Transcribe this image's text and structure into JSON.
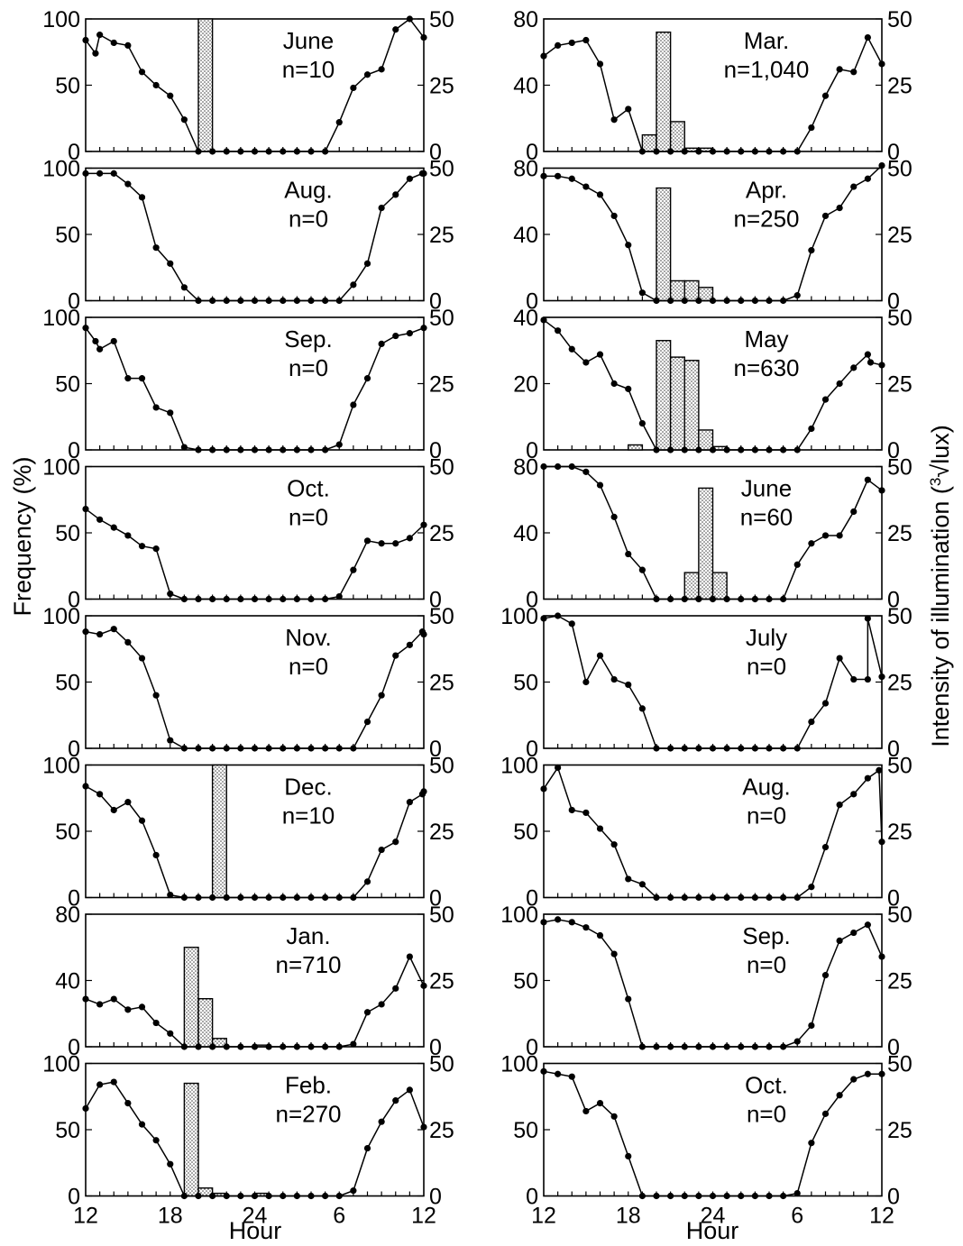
{
  "figure": {
    "ylabel_left": "Frequency (%)",
    "ylabel_right": "Intensity of illumination (",
    "ylabel_right_root": "3",
    "ylabel_right_unit": "lux)",
    "xlabel": "Hour",
    "x_tick_labels": [
      "12",
      "18",
      "24",
      "6",
      "12"
    ]
  },
  "chart_data": [
    {
      "type": "bar+line",
      "month": "June",
      "n": "n=10",
      "freq_ticks": [
        "0",
        "50",
        "100"
      ],
      "freq_max": 100,
      "illum_ticks": [
        "0",
        "25",
        "50"
      ],
      "illum_max": 50,
      "bars": [
        {
          "hour": 20.5,
          "value": 100
        }
      ],
      "illumination": [
        42,
        37,
        44,
        41,
        40,
        30,
        25,
        21,
        12,
        0,
        0,
        0,
        0,
        0,
        0,
        0,
        0,
        0,
        0,
        11,
        24,
        29,
        31,
        46,
        50,
        43
      ],
      "illum_x": [
        12,
        12.7,
        13,
        14,
        15,
        16,
        17,
        18,
        19,
        20,
        21,
        22,
        23,
        24,
        25,
        26,
        27,
        28,
        29,
        30,
        31,
        32,
        33,
        34,
        35,
        36
      ]
    },
    {
      "type": "bar+line",
      "month": "Mar.",
      "n": "n=1,040",
      "freq_ticks": [
        "0",
        "40",
        "80"
      ],
      "freq_max": 80,
      "illum_ticks": [
        "0",
        "25",
        "50"
      ],
      "illum_max": 50,
      "bars": [
        {
          "hour": 19.5,
          "value": 10
        },
        {
          "hour": 20.5,
          "value": 72
        },
        {
          "hour": 21.5,
          "value": 18
        },
        {
          "hour": 22.5,
          "value": 2
        },
        {
          "hour": 23.5,
          "value": 2
        }
      ],
      "illumination": [
        36,
        40,
        41,
        42,
        33,
        12,
        16,
        0,
        0,
        0,
        0,
        0,
        0,
        0,
        0,
        0,
        0,
        0,
        0,
        9,
        21,
        31,
        30,
        43,
        33
      ],
      "illum_x": [
        12,
        13,
        14,
        15,
        16,
        17,
        18,
        19,
        20,
        21,
        22,
        23,
        24,
        25,
        26,
        27,
        28,
        29,
        30,
        31,
        32,
        33,
        34,
        35,
        36
      ]
    },
    {
      "type": "bar+line",
      "month": "Aug.",
      "n": "n=0",
      "freq_ticks": [
        "0",
        "50",
        "100"
      ],
      "freq_max": 100,
      "illum_ticks": [
        "0",
        "25",
        "50"
      ],
      "illum_max": 50,
      "bars": [],
      "illumination": [
        48,
        48,
        48,
        44,
        39,
        20,
        14,
        5,
        0,
        0,
        0,
        0,
        0,
        0,
        0,
        0,
        0,
        0,
        0,
        6,
        14,
        35,
        40,
        46,
        48,
        48
      ],
      "illum_x": [
        12,
        13,
        14,
        15,
        16,
        17,
        18,
        19,
        20,
        21,
        22,
        23,
        24,
        25,
        26,
        27,
        28,
        29,
        30,
        31,
        32,
        33,
        34,
        35,
        35.9,
        36
      ]
    },
    {
      "type": "bar+line",
      "month": "Apr.",
      "n": "n=250",
      "freq_ticks": [
        "0",
        "40",
        "80"
      ],
      "freq_max": 80,
      "illum_ticks": [
        "0",
        "25",
        "50"
      ],
      "illum_max": 50,
      "bars": [
        {
          "hour": 20.5,
          "value": 68
        },
        {
          "hour": 21.5,
          "value": 12
        },
        {
          "hour": 22.5,
          "value": 12
        },
        {
          "hour": 23.5,
          "value": 8
        }
      ],
      "illumination": [
        47,
        47,
        46,
        43,
        40,
        32,
        21,
        3,
        0,
        0,
        0,
        0,
        0,
        0,
        0,
        0,
        0,
        0,
        2,
        19,
        32,
        35,
        43,
        46,
        51
      ],
      "illum_x": [
        12,
        13,
        14,
        15,
        16,
        17,
        18,
        19,
        20,
        21,
        22,
        23,
        24,
        25,
        26,
        27,
        28,
        29,
        30,
        31,
        32,
        33,
        34,
        35,
        36
      ]
    },
    {
      "type": "bar+line",
      "month": "Sep.",
      "n": "n=0",
      "freq_ticks": [
        "0",
        "50",
        "100"
      ],
      "freq_max": 100,
      "illum_ticks": [
        "0",
        "25",
        "50"
      ],
      "illum_max": 50,
      "bars": [],
      "illumination": [
        46,
        41,
        38,
        41,
        27,
        27,
        16,
        14,
        1,
        0,
        0,
        0,
        0,
        0,
        0,
        0,
        0,
        0,
        0,
        2,
        17,
        27,
        40,
        43,
        44,
        46
      ],
      "illum_x": [
        12,
        12.7,
        13,
        14,
        15,
        16,
        17,
        18,
        19,
        20,
        21,
        22,
        23,
        24,
        25,
        26,
        27,
        28,
        29,
        30,
        31,
        32,
        33,
        34,
        35,
        36
      ]
    },
    {
      "type": "bar+line",
      "month": "May",
      "n": "n=630",
      "freq_ticks": [
        "0",
        "20",
        "40"
      ],
      "freq_max": 40,
      "illum_ticks": [
        "0",
        "25",
        "50"
      ],
      "illum_max": 50,
      "bars": [
        {
          "hour": 18.5,
          "value": 1.5
        },
        {
          "hour": 20.5,
          "value": 33
        },
        {
          "hour": 21.5,
          "value": 28
        },
        {
          "hour": 22.5,
          "value": 27
        },
        {
          "hour": 23.5,
          "value": 6
        },
        {
          "hour": 24.5,
          "value": 1
        }
      ],
      "illumination": [
        49,
        45,
        38,
        33,
        36,
        25,
        23,
        10,
        0,
        0,
        0,
        0,
        0,
        0,
        0,
        0,
        0,
        0,
        0,
        8,
        19,
        25,
        31,
        36,
        33,
        32
      ],
      "illum_x": [
        12,
        13,
        14,
        15,
        16,
        17,
        18,
        19,
        20,
        21,
        22,
        23,
        24,
        25,
        26,
        27,
        28,
        29,
        30,
        31,
        32,
        33,
        34,
        35,
        35.2,
        36
      ]
    },
    {
      "type": "bar+line",
      "month": "Oct.",
      "n": "n=0",
      "freq_ticks": [
        "0",
        "50",
        "100"
      ],
      "freq_max": 100,
      "illum_ticks": [
        "0",
        "25",
        "50"
      ],
      "illum_max": 50,
      "bars": [],
      "illumination": [
        34,
        30,
        27,
        24,
        20,
        19,
        2,
        0,
        0,
        0,
        0,
        0,
        0,
        0,
        0,
        0,
        0,
        0,
        1,
        11,
        22,
        21,
        21,
        23,
        28
      ],
      "illum_x": [
        12,
        13,
        14,
        15,
        16,
        17,
        18,
        19,
        20,
        21,
        22,
        23,
        24,
        25,
        26,
        27,
        28,
        29,
        30,
        31,
        32,
        33,
        34,
        35,
        36
      ]
    },
    {
      "type": "bar+line",
      "month": "June",
      "n": "n=60",
      "freq_ticks": [
        "0",
        "40",
        "80"
      ],
      "freq_max": 80,
      "illum_ticks": [
        "0",
        "25",
        "50"
      ],
      "illum_max": 50,
      "bars": [
        {
          "hour": 22.5,
          "value": 16
        },
        {
          "hour": 23.5,
          "value": 67
        },
        {
          "hour": 24.5,
          "value": 16
        }
      ],
      "illumination": [
        50,
        50,
        50,
        48,
        43,
        31,
        17,
        11,
        0,
        0,
        0,
        0,
        0,
        0,
        0,
        0,
        0,
        0,
        13,
        21,
        24,
        24,
        33,
        45,
        41
      ],
      "illum_x": [
        12,
        13,
        14,
        15,
        16,
        17,
        18,
        19,
        20,
        21,
        22,
        23,
        24,
        25,
        26,
        27,
        28,
        29,
        30,
        31,
        32,
        33,
        34,
        35,
        36
      ]
    },
    {
      "type": "bar+line",
      "month": "Nov.",
      "n": "n=0",
      "freq_ticks": [
        "0",
        "50",
        "100"
      ],
      "freq_max": 100,
      "illum_ticks": [
        "0",
        "25",
        "50"
      ],
      "illum_max": 50,
      "bars": [],
      "illumination": [
        44,
        43,
        45,
        40,
        34,
        20,
        3,
        0,
        0,
        0,
        0,
        0,
        0,
        0,
        0,
        0,
        0,
        0,
        0,
        0,
        10,
        20,
        35,
        39,
        44,
        43
      ],
      "illum_x": [
        12,
        13,
        14,
        15,
        16,
        17,
        18,
        19,
        20,
        21,
        22,
        23,
        24,
        25,
        26,
        27,
        28,
        29,
        30,
        31,
        32,
        33,
        34,
        35,
        35.9,
        36
      ]
    },
    {
      "type": "bar+line",
      "month": "July",
      "n": "n=0",
      "freq_ticks": [
        "0",
        "50",
        "100"
      ],
      "freq_max": 100,
      "illum_ticks": [
        "0",
        "25",
        "50"
      ],
      "illum_max": 50,
      "bars": [],
      "illumination": [
        49,
        50,
        47,
        25,
        35,
        26,
        24,
        15,
        0,
        0,
        0,
        0,
        0,
        0,
        0,
        0,
        0,
        0,
        0,
        10,
        17,
        34,
        26,
        26,
        49,
        27
      ],
      "illum_x": [
        12,
        13,
        14,
        15,
        16,
        17,
        18,
        19,
        20,
        21,
        22,
        23,
        24,
        25,
        26,
        27,
        28,
        29,
        30,
        31,
        32,
        33,
        34,
        35,
        35,
        36
      ]
    },
    {
      "type": "bar+line",
      "month": "Dec.",
      "n": "n=10",
      "freq_ticks": [
        "0",
        "50",
        "100"
      ],
      "freq_max": 100,
      "illum_ticks": [
        "0",
        "25",
        "50"
      ],
      "illum_max": 50,
      "bars": [
        {
          "hour": 21.5,
          "value": 100
        }
      ],
      "illumination": [
        42,
        39,
        33,
        36,
        29,
        16,
        1,
        0,
        0,
        0,
        0,
        0,
        0,
        0,
        0,
        0,
        0,
        0,
        0,
        0,
        6,
        18,
        21,
        36,
        39,
        40
      ],
      "illum_x": [
        12,
        13,
        14,
        15,
        16,
        17,
        18,
        19,
        20,
        21,
        22,
        23,
        24,
        25,
        26,
        27,
        28,
        29,
        30,
        31,
        32,
        33,
        34,
        35,
        35.9,
        36
      ]
    },
    {
      "type": "bar+line",
      "month": "Aug.",
      "n": "n=0",
      "freq_ticks": [
        "0",
        "50",
        "100"
      ],
      "freq_max": 100,
      "illum_ticks": [
        "0",
        "25",
        "50"
      ],
      "illum_max": 50,
      "bars": [],
      "illumination": [
        41,
        49,
        33,
        32,
        26,
        20,
        7,
        5,
        0,
        0,
        0,
        0,
        0,
        0,
        0,
        0,
        0,
        0,
        0,
        4,
        19,
        35,
        39,
        45,
        48,
        21
      ],
      "illum_x": [
        12,
        13,
        14,
        15,
        16,
        17,
        18,
        19,
        20,
        21,
        22,
        23,
        24,
        25,
        26,
        27,
        28,
        29,
        30,
        31,
        32,
        33,
        34,
        35,
        35.8,
        36
      ]
    },
    {
      "type": "bar+line",
      "month": "Jan.",
      "n": "n=710",
      "freq_ticks": [
        "0",
        "40",
        "80"
      ],
      "freq_max": 80,
      "illum_ticks": [
        "0",
        "25",
        "50"
      ],
      "illum_max": 50,
      "bars": [
        {
          "hour": 19.5,
          "value": 60
        },
        {
          "hour": 20.5,
          "value": 29
        },
        {
          "hour": 21.5,
          "value": 5
        },
        {
          "hour": 24.5,
          "value": 1
        }
      ],
      "illumination": [
        18,
        16,
        18,
        14,
        15,
        9,
        5,
        0,
        0,
        0,
        0,
        0,
        0,
        0,
        0,
        0,
        0,
        0,
        0,
        1,
        13,
        16,
        22,
        34,
        23
      ],
      "illum_x": [
        12,
        13,
        14,
        15,
        16,
        17,
        18,
        19,
        20,
        21,
        22,
        23,
        24,
        25,
        26,
        27,
        28,
        29,
        30,
        31,
        32,
        33,
        34,
        35,
        36
      ]
    },
    {
      "type": "bar+line",
      "month": "Sep.",
      "n": "n=0",
      "freq_ticks": [
        "0",
        "50",
        "100"
      ],
      "freq_max": 100,
      "illum_ticks": [
        "0",
        "25",
        "50"
      ],
      "illum_max": 50,
      "bars": [],
      "illumination": [
        47,
        48,
        47,
        45,
        42,
        35,
        18,
        0,
        0,
        0,
        0,
        0,
        0,
        0,
        0,
        0,
        0,
        0,
        2,
        8,
        27,
        40,
        43,
        46,
        34
      ],
      "illum_x": [
        12,
        13,
        14,
        15,
        16,
        17,
        18,
        19,
        20,
        21,
        22,
        23,
        24,
        25,
        26,
        27,
        28,
        29,
        30,
        31,
        32,
        33,
        34,
        35,
        36
      ]
    },
    {
      "type": "bar+line",
      "month": "Feb.",
      "n": "n=270",
      "freq_ticks": [
        "0",
        "50",
        "100"
      ],
      "freq_max": 100,
      "illum_ticks": [
        "0",
        "25",
        "50"
      ],
      "illum_max": 50,
      "bars": [
        {
          "hour": 19.5,
          "value": 85
        },
        {
          "hour": 20.5,
          "value": 6
        },
        {
          "hour": 21.5,
          "value": 2
        },
        {
          "hour": 24.5,
          "value": 2
        }
      ],
      "illumination": [
        33,
        42,
        43,
        35,
        27,
        21,
        12,
        0,
        0,
        0,
        0,
        0,
        0,
        0,
        0,
        0,
        0,
        0,
        0,
        2,
        18,
        28,
        36,
        40,
        26
      ],
      "illum_x": [
        12,
        13,
        14,
        15,
        16,
        17,
        18,
        19,
        20,
        21,
        22,
        23,
        24,
        25,
        26,
        27,
        28,
        29,
        30,
        31,
        32,
        33,
        34,
        35,
        36
      ]
    },
    {
      "type": "bar+line",
      "month": "Oct.",
      "n": "n=0",
      "freq_ticks": [
        "0",
        "50",
        "100"
      ],
      "freq_max": 100,
      "illum_ticks": [
        "0",
        "25",
        "50"
      ],
      "illum_max": 50,
      "bars": [],
      "illumination": [
        47,
        46,
        45,
        32,
        35,
        30,
        15,
        0,
        0,
        0,
        0,
        0,
        0,
        0,
        0,
        0,
        0,
        0,
        1,
        20,
        31,
        38,
        44,
        46,
        46
      ],
      "illum_x": [
        12,
        13,
        14,
        15,
        16,
        17,
        18,
        19,
        20,
        21,
        22,
        23,
        24,
        25,
        26,
        27,
        28,
        29,
        30,
        31,
        32,
        33,
        34,
        35,
        36
      ]
    }
  ]
}
